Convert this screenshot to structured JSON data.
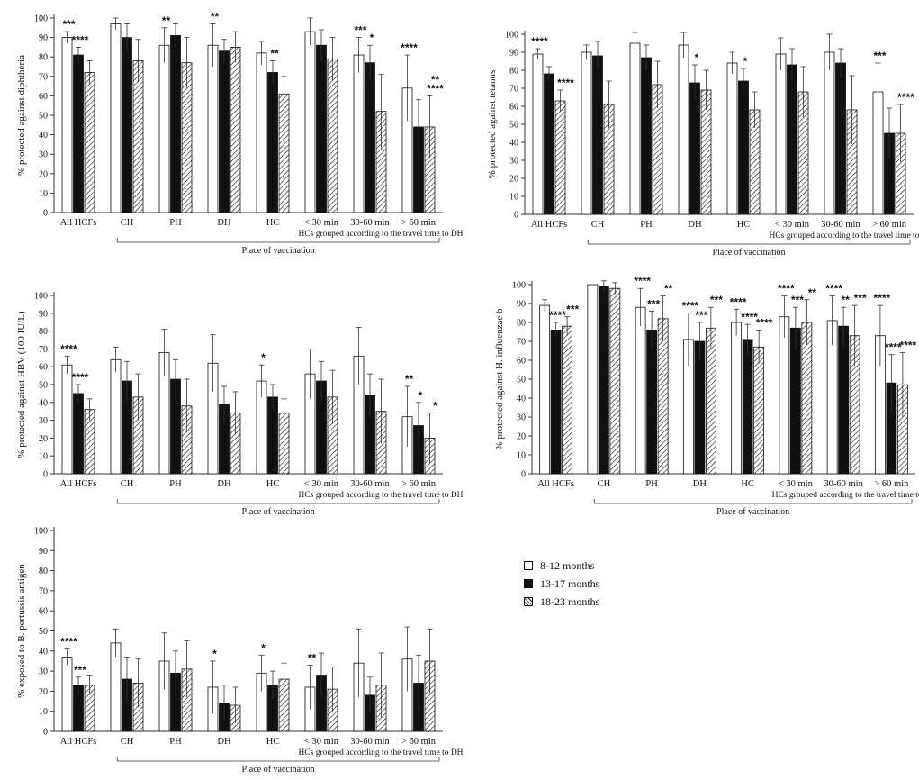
{
  "legend": {
    "items": [
      {
        "label": "8-12 months",
        "style": "open"
      },
      {
        "label": "13-17 months",
        "style": "solid"
      },
      {
        "label": "18-23 months",
        "style": "hatch"
      }
    ]
  },
  "chart_data": [
    {
      "type": "bar",
      "ylabel": "% protected against diphtheria",
      "ylim": [
        0,
        100
      ],
      "yticks": [
        0,
        10,
        20,
        30,
        40,
        50,
        60,
        70,
        80,
        90,
        100
      ],
      "categories": [
        "All HCFs",
        "CH",
        "PH",
        "DH",
        "HC",
        "< 30 min",
        "30-60 min",
        "> 60 min"
      ],
      "group_note": "HCs grouped according to the travel time to DH",
      "xlabel": "Place of vaccination",
      "series": [
        {
          "name": "8-12 months",
          "values": [
            90,
            97,
            86,
            86,
            82,
            93,
            81,
            64
          ],
          "err": [
            3,
            3,
            9,
            11,
            6,
            7,
            9,
            17
          ]
        },
        {
          "name": "13-17 months",
          "values": [
            81,
            90,
            91,
            83,
            72,
            86,
            77,
            44
          ],
          "err": [
            4,
            7,
            6,
            6,
            6,
            8,
            9,
            14
          ]
        },
        {
          "name": "18-23 months",
          "values": [
            72,
            78,
            77,
            85,
            61,
            79,
            52,
            44
          ],
          "err": [
            6,
            11,
            13,
            8,
            9,
            11,
            19,
            16
          ]
        }
      ],
      "stars": [
        [
          "***",
          "",
          "**",
          "**",
          "",
          "",
          "***",
          "****"
        ],
        [
          "****",
          "",
          "",
          "",
          "**",
          "",
          "*",
          ""
        ],
        [
          "",
          "",
          "",
          "",
          "",
          "",
          "",
          "****,**"
        ]
      ]
    },
    {
      "type": "bar",
      "ylabel": "% protected against tetanus",
      "ylim": [
        0,
        100
      ],
      "yticks": [
        0,
        10,
        20,
        30,
        40,
        50,
        60,
        70,
        80,
        90,
        100
      ],
      "categories": [
        "All HCFs",
        "CH",
        "PH",
        "DH",
        "HC",
        "< 30 min",
        "30-60 min",
        "> 60 min"
      ],
      "group_note": "HCs grouped according to the travel time to DH",
      "xlabel": "Place of vaccination",
      "series": [
        {
          "name": "8-12 months",
          "values": [
            89,
            90,
            95,
            94,
            84,
            89,
            90,
            68
          ],
          "err": [
            3,
            4,
            6,
            7,
            6,
            9,
            10,
            16
          ]
        },
        {
          "name": "13-17 months",
          "values": [
            78,
            88,
            87,
            73,
            74,
            83,
            84,
            45
          ],
          "err": [
            4,
            8,
            7,
            10,
            7,
            9,
            8,
            14
          ]
        },
        {
          "name": "18-23 months",
          "values": [
            63,
            61,
            72,
            69,
            58,
            68,
            58,
            45
          ],
          "err": [
            6,
            13,
            13,
            11,
            10,
            14,
            19,
            16
          ]
        }
      ],
      "stars": [
        [
          "****",
          "",
          "",
          "",
          "",
          "",
          "",
          "***"
        ],
        [
          "",
          "",
          "",
          "*",
          "*",
          "",
          "",
          ""
        ],
        [
          "****",
          "",
          "",
          "",
          "",
          "",
          "",
          "****"
        ]
      ]
    },
    {
      "type": "bar",
      "ylabel": "% protected against HBV (100 IU/L)",
      "ylim": [
        0,
        100
      ],
      "yticks": [
        0,
        10,
        20,
        30,
        40,
        50,
        60,
        70,
        80,
        90,
        100
      ],
      "categories": [
        "All HCFs",
        "CH",
        "PH",
        "DH",
        "HC",
        "< 30 min",
        "30-60 min",
        "> 60 min"
      ],
      "group_note": "HCs grouped according to the travel time to DH",
      "xlabel": "Place of vaccination",
      "series": [
        {
          "name": "8-12 months",
          "values": [
            61,
            64,
            68,
            62,
            52,
            56,
            66,
            32
          ],
          "err": [
            5,
            7,
            13,
            16,
            9,
            14,
            16,
            17
          ]
        },
        {
          "name": "13-17 months",
          "values": [
            45,
            52,
            53,
            39,
            43,
            52,
            44,
            27
          ],
          "err": [
            5,
            11,
            11,
            10,
            7,
            11,
            12,
            13
          ]
        },
        {
          "name": "18-23 months",
          "values": [
            36,
            43,
            38,
            34,
            34,
            43,
            35,
            20
          ],
          "err": [
            6,
            13,
            15,
            12,
            8,
            15,
            18,
            14
          ]
        }
      ],
      "stars": [
        [
          "****",
          "",
          "",
          "",
          "*",
          "",
          "",
          "**"
        ],
        [
          "****",
          "",
          "",
          "",
          "",
          "",
          "",
          "*"
        ],
        [
          "",
          "",
          "",
          "",
          "",
          "",
          "",
          "*"
        ]
      ]
    },
    {
      "type": "bar",
      "ylabel": "% protected against H. influenzae b",
      "ylim": [
        0,
        100
      ],
      "yticks": [
        0,
        10,
        20,
        30,
        40,
        50,
        60,
        70,
        80,
        90,
        100
      ],
      "categories": [
        "All HCFs",
        "CH",
        "PH",
        "DH",
        "HC",
        "< 30 min",
        "30-60 min",
        "> 60 min"
      ],
      "group_note": "HCs grouped according to the travel time to DH",
      "xlabel": "Place of vaccination",
      "series": [
        {
          "name": "8-12 months",
          "values": [
            89,
            100,
            88,
            71,
            80,
            83,
            81,
            73
          ],
          "err": [
            3,
            0,
            10,
            14,
            7,
            11,
            13,
            16
          ]
        },
        {
          "name": "13-17 months",
          "values": [
            76,
            99,
            76,
            70,
            71,
            77,
            78,
            48
          ],
          "err": [
            4,
            3,
            10,
            10,
            8,
            11,
            10,
            15
          ]
        },
        {
          "name": "18-23 months",
          "values": [
            78,
            98,
            82,
            77,
            67,
            80,
            73,
            47
          ],
          "err": [
            5,
            3,
            12,
            11,
            9,
            12,
            16,
            17
          ]
        }
      ],
      "stars": [
        [
          "",
          "",
          "****",
          "****",
          "****",
          "****",
          "****",
          "****"
        ],
        [
          "****",
          "",
          "***",
          "***",
          "****",
          "***",
          "**",
          "****"
        ],
        [
          "***",
          "",
          "**",
          "***",
          "****",
          "**",
          "***",
          "****"
        ]
      ]
    },
    {
      "type": "bar",
      "ylabel": "% exposed to B. pertussis antigen",
      "ylim": [
        0,
        100
      ],
      "yticks": [
        0,
        10,
        20,
        30,
        40,
        50,
        60,
        70,
        80,
        90,
        100
      ],
      "categories": [
        "All HCFs",
        "CH",
        "PH",
        "DH",
        "HC",
        "< 30 min",
        "30-60 min",
        "> 60 min"
      ],
      "group_note": "HCs grouped according to the travel time to DH",
      "xlabel": "Place of vaccination",
      "series": [
        {
          "name": "8-12 months",
          "values": [
            37,
            44,
            35,
            22,
            29,
            22,
            34,
            36
          ],
          "err": [
            4,
            7,
            14,
            13,
            9,
            11,
            17,
            16
          ]
        },
        {
          "name": "13-17 months",
          "values": [
            23,
            26,
            29,
            14,
            23,
            28,
            18,
            24
          ],
          "err": [
            4,
            11,
            11,
            9,
            7,
            11,
            9,
            14
          ]
        },
        {
          "name": "18-23 months",
          "values": [
            23,
            24,
            31,
            13,
            26,
            21,
            23,
            35
          ],
          "err": [
            5,
            12,
            14,
            9,
            8,
            11,
            16,
            16
          ]
        }
      ],
      "stars": [
        [
          "****",
          "",
          "",
          "*",
          "*",
          "**",
          "",
          ""
        ],
        [
          "***",
          "",
          "",
          "",
          "",
          "",
          "",
          ""
        ],
        [
          "",
          "",
          "",
          "",
          "",
          "",
          "",
          ""
        ]
      ]
    }
  ]
}
